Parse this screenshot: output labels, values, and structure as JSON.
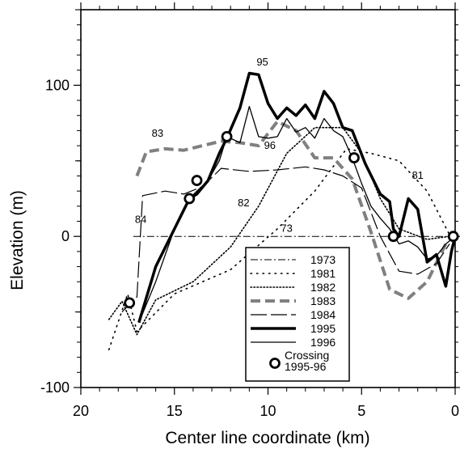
{
  "chart_data": {
    "type": "line",
    "title": "",
    "xlabel": "Center line coordinate (km)",
    "ylabel": "Elevation (m)",
    "xlim": [
      20,
      0
    ],
    "ylim": [
      -100,
      150
    ],
    "x_ticks": [
      "20",
      "15",
      "10",
      "5",
      "0"
    ],
    "y_ticks": [
      "-100",
      "0",
      "100"
    ],
    "grid": false,
    "legend_position": "bottom-right",
    "series": [
      {
        "name": "1973",
        "style": "dashdot",
        "color": "#000000",
        "x": [
          17.2,
          0
        ],
        "y": [
          0,
          0
        ]
      },
      {
        "name": "1981",
        "style": "dotted-sparse",
        "color": "#000000",
        "x": [
          18.5,
          17.5,
          17.0,
          15.0,
          12.0,
          9.5,
          7.5,
          5.8,
          4.5,
          3.0,
          1.5,
          0.3
        ],
        "y": [
          -75,
          -38,
          -63,
          -38,
          -22,
          5,
          30,
          58,
          55,
          50,
          30,
          1
        ]
      },
      {
        "name": "1982",
        "style": "dotted",
        "color": "#000000",
        "x": [
          18.5,
          17.8,
          17.0,
          16.0,
          14.0,
          12.0,
          10.5,
          9.0,
          7.5,
          6.0,
          5.0,
          4.0,
          3.0,
          1.5,
          0.3
        ],
        "y": [
          -55,
          -43,
          -65,
          -42,
          -30,
          -7,
          20,
          55,
          72,
          72,
          55,
          25,
          5,
          -2,
          0
        ]
      },
      {
        "name": "1983",
        "style": "dashed-thick",
        "color": "#808080",
        "x": [
          17.0,
          16.5,
          15.5,
          14.5,
          13.5,
          12.5,
          11.5,
          10.5,
          9.5,
          8.5,
          7.5,
          6.5,
          5.5,
          4.5,
          3.5,
          2.5,
          1.5,
          0.5
        ],
        "y": [
          40,
          56,
          58,
          57,
          60,
          63,
          62,
          60,
          76,
          70,
          52,
          52,
          38,
          3,
          -35,
          -41,
          -30,
          -5
        ]
      },
      {
        "name": "1984",
        "style": "dashed-long",
        "color": "#000000",
        "x": [
          17.8,
          17.0,
          16.7,
          15.5,
          14.5,
          13.5,
          12.5,
          11.0,
          9.5,
          8.0,
          7.0,
          6.0,
          5.0,
          4.0,
          3.0,
          2.0,
          1.0,
          0.3
        ],
        "y": [
          -50,
          -40,
          27,
          30,
          28,
          33,
          45,
          43,
          44,
          46,
          44,
          40,
          32,
          0,
          -23,
          -25,
          -18,
          -5
        ]
      },
      {
        "name": "1995",
        "style": "solid-thick",
        "color": "#000000",
        "x": [
          16.9,
          16.0,
          15.0,
          14.2,
          13.8,
          13.2,
          12.6,
          12.2,
          11.5,
          11.0,
          10.5,
          10.0,
          9.5,
          9.0,
          8.5,
          8.0,
          7.5,
          7.0,
          6.5,
          6.0,
          5.5,
          4.8,
          4.0,
          3.5,
          3.3,
          3.0,
          2.5,
          2.0,
          1.5,
          1.0,
          0.5,
          0.2,
          0.0
        ],
        "y": [
          -57,
          -20,
          5,
          25,
          28,
          37,
          55,
          65,
          85,
          108,
          107,
          88,
          78,
          85,
          80,
          87,
          78,
          96,
          88,
          72,
          70,
          48,
          28,
          23,
          5,
          0,
          25,
          18,
          -17,
          -12,
          -33,
          -10,
          0
        ]
      },
      {
        "name": "1996",
        "style": "solid",
        "color": "#000000",
        "x": [
          16.9,
          16.0,
          15.0,
          14.2,
          13.8,
          13.2,
          12.6,
          12.2,
          11.5,
          11.0,
          10.5,
          10.0,
          9.5,
          9.0,
          8.5,
          8.0,
          7.5,
          7.0,
          6.5,
          6.0,
          5.5,
          5.0,
          4.5,
          4.0,
          3.5,
          3.0,
          2.5,
          2.0,
          1.5,
          1.0,
          0.5,
          0.0
        ],
        "y": [
          -57,
          -30,
          5,
          25,
          30,
          37,
          50,
          66,
          62,
          86,
          66,
          65,
          66,
          78,
          69,
          72,
          65,
          78,
          70,
          66,
          52,
          35,
          20,
          12,
          5,
          -5,
          -3,
          -7,
          -15,
          -13,
          -5,
          0
        ]
      }
    ],
    "crossing_markers": {
      "label": "Crossing",
      "label2": "1995-96",
      "points": [
        {
          "x": 17.4,
          "y": -44
        },
        {
          "x": 14.2,
          "y": 25
        },
        {
          "x": 13.8,
          "y": 37
        },
        {
          "x": 12.2,
          "y": 66
        },
        {
          "x": 5.4,
          "y": 52
        },
        {
          "x": 3.3,
          "y": 0
        },
        {
          "x": 0.1,
          "y": 0
        }
      ]
    },
    "annotations": [
      {
        "text": "95",
        "x": 10.3,
        "y": 113
      },
      {
        "text": "83",
        "x": 15.9,
        "y": 66
      },
      {
        "text": "96",
        "x": 9.9,
        "y": 58
      },
      {
        "text": "84",
        "x": 16.8,
        "y": 9
      },
      {
        "text": "82",
        "x": 11.3,
        "y": 20
      },
      {
        "text": "73",
        "x": 9.0,
        "y": 3
      },
      {
        "text": "81",
        "x": 2.0,
        "y": 38
      }
    ]
  }
}
